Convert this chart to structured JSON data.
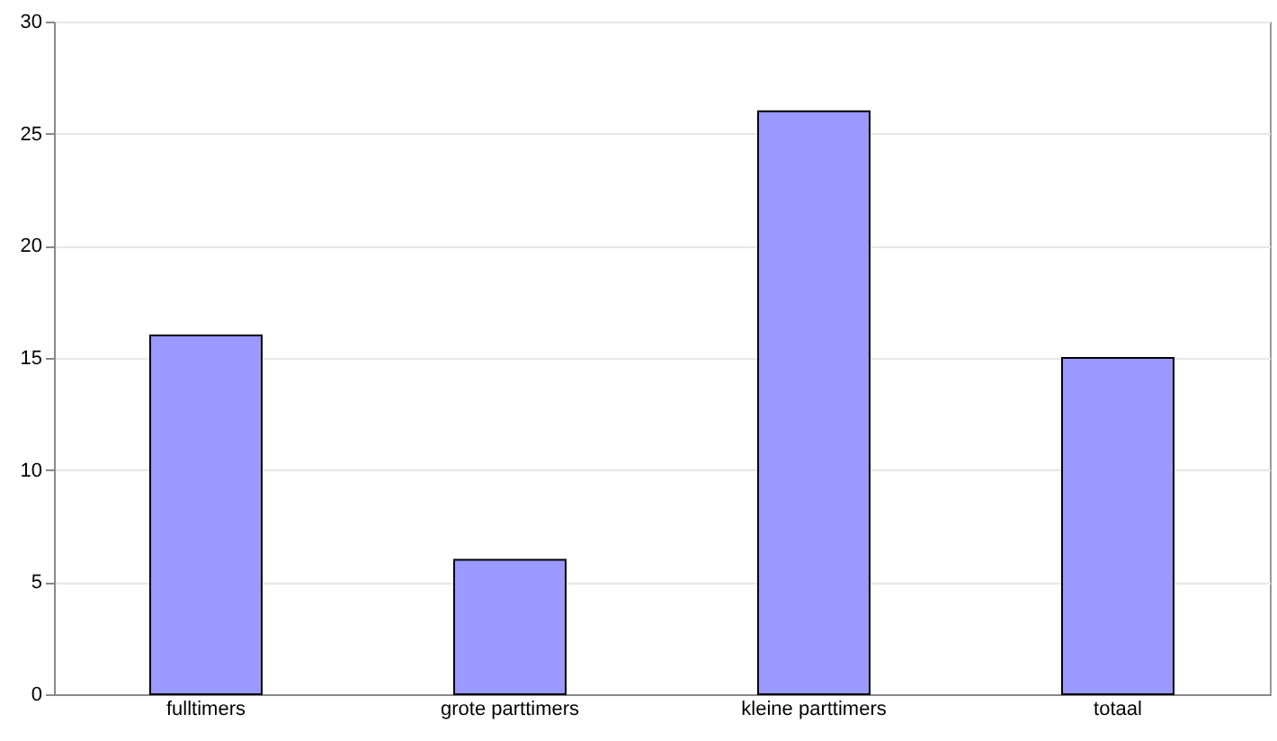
{
  "chart_data": {
    "type": "bar",
    "categories": [
      "fulltimers",
      "grote parttimers",
      "kleine parttimers",
      "totaal"
    ],
    "values": [
      16,
      6,
      26,
      15
    ],
    "color": "#9999ff",
    "ylim": [
      0,
      30
    ],
    "yticks": [
      0,
      5,
      10,
      15,
      20,
      25,
      30
    ],
    "grid": "y"
  }
}
